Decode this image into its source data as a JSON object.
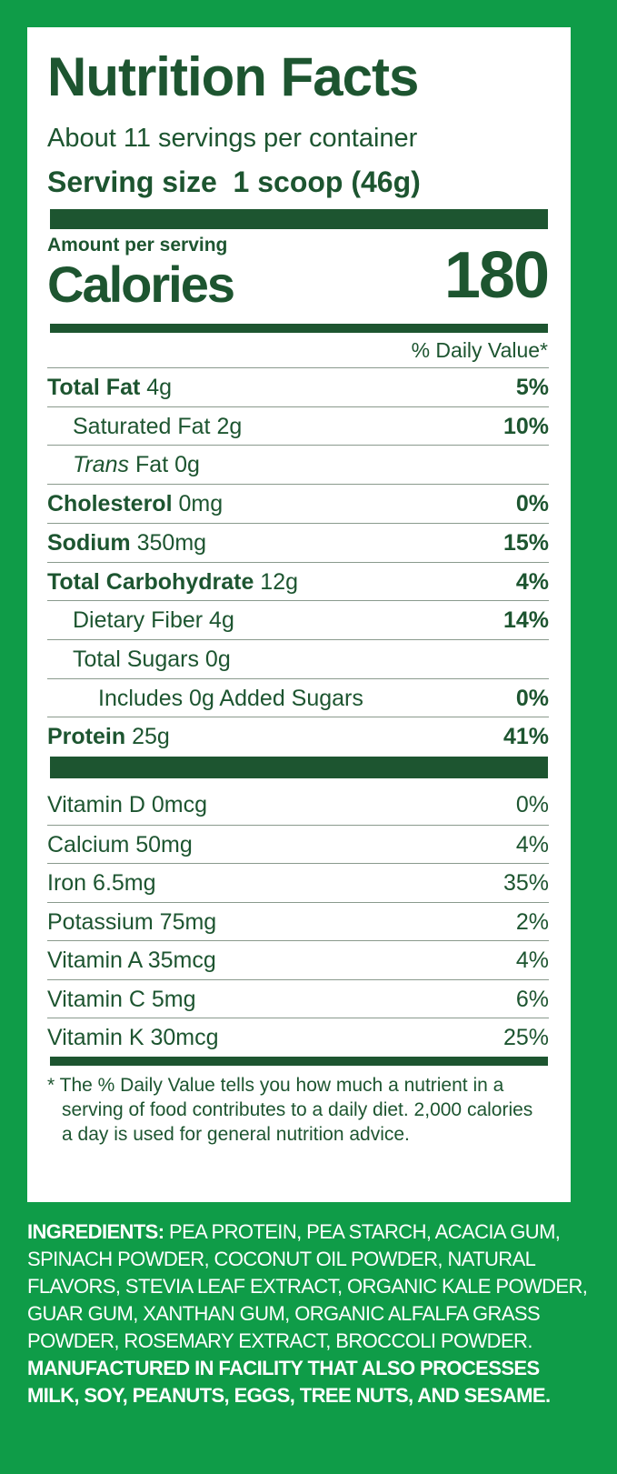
{
  "title": "Nutrition Facts",
  "servings": "About 11 servings per container",
  "serving_size": {
    "label": "Serving size",
    "value": "1 scoop (46g)"
  },
  "amount_per_serving": "Amount per serving",
  "calories": {
    "label": "Calories",
    "value": "180"
  },
  "dv_header": "% Daily Value*",
  "nutrients": [
    {
      "name": "Total Fat",
      "amount": "4g",
      "dv": "5%"
    },
    {
      "name": "Saturated Fat",
      "amount": "2g",
      "dv": "10%"
    },
    {
      "name_italic": "Trans",
      "name": "Fat",
      "amount": "0g"
    },
    {
      "name": "Cholesterol",
      "amount": "0mg",
      "dv": "0%"
    },
    {
      "name": "Sodium",
      "amount": "350mg",
      "dv": "15%"
    },
    {
      "name": "Total Carbohydrate",
      "amount": "12g",
      "dv": "4%"
    },
    {
      "name": "Dietary Fiber",
      "amount": "4g",
      "dv": "14%"
    },
    {
      "name": "Total Sugars",
      "amount": "0g"
    },
    {
      "name": "Includes 0g Added Sugars",
      "dv": "0%"
    },
    {
      "name": "Protein",
      "amount": "25g",
      "dv": "41%"
    }
  ],
  "vitamins": [
    {
      "name": "Vitamin D",
      "amount": "0mcg",
      "dv": "0%"
    },
    {
      "name": "Calcium",
      "amount": "50mg",
      "dv": "4%"
    },
    {
      "name": "Iron",
      "amount": "6.5mg",
      "dv": "35%"
    },
    {
      "name": "Potassium",
      "amount": "75mg",
      "dv": "2%"
    },
    {
      "name": "Vitamin A",
      "amount": "35mcg",
      "dv": "4%"
    },
    {
      "name": "Vitamin C",
      "amount": "5mg",
      "dv": "6%"
    },
    {
      "name": "Vitamin K",
      "amount": "30mcg",
      "dv": "25%"
    }
  ],
  "footnote": "* The % Daily Value tells you how much a nutrient in a serving of food contributes to a daily diet. 2,000 calories a day is used for general nutrition advice.",
  "ingredients": {
    "label": "INGREDIENTS:",
    "text": "PEA PROTEIN, PEA STARCH, ACACIA GUM, SPINACH POWDER, COCONUT OIL POWDER, NATURAL FLAVORS, STEVIA LEAF EXTRACT, ORGANIC KALE POWDER, GUAR GUM, XANTHAN GUM, ORGANIC ALFALFA GRASS POWDER, ROSEMARY EXTRACT, BROCCOLI POWDER."
  },
  "allergen": "MANUFACTURED IN FACILITY THAT ALSO PROCESSES MILK, SOY, PEANUTS, EGGS, TREE NUTS, AND SESAME."
}
